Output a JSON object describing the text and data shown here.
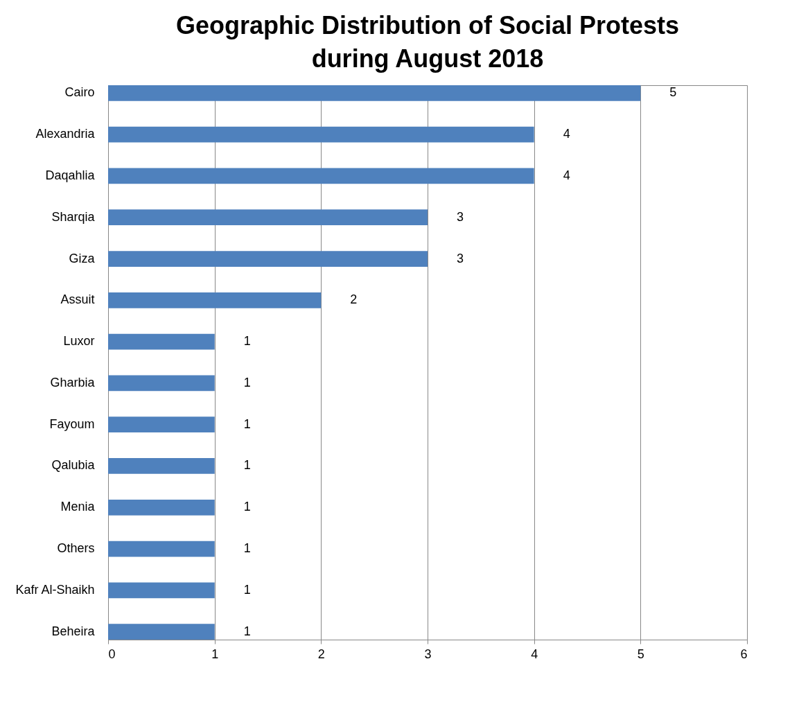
{
  "chart_data": {
    "type": "bar",
    "orientation": "horizontal",
    "title": "Geographic Distribution of Social Protests\nduring August 2018",
    "categories": [
      "Cairo",
      "Alexandria",
      "Daqahlia",
      "Sharqia",
      "Giza",
      "Assuit",
      "Luxor",
      "Gharbia",
      "Fayoum",
      "Qalubia",
      "Menia",
      "Others",
      "Kafr Al-Shaikh",
      "Beheira"
    ],
    "values": [
      5,
      4,
      4,
      3,
      3,
      2,
      1,
      1,
      1,
      1,
      1,
      1,
      1,
      1
    ],
    "color": "#4f81bd",
    "xlim": [
      0,
      6
    ],
    "xticks": [
      0,
      1,
      2,
      3,
      4,
      5,
      6
    ],
    "grid": "x",
    "data_labels": true
  }
}
